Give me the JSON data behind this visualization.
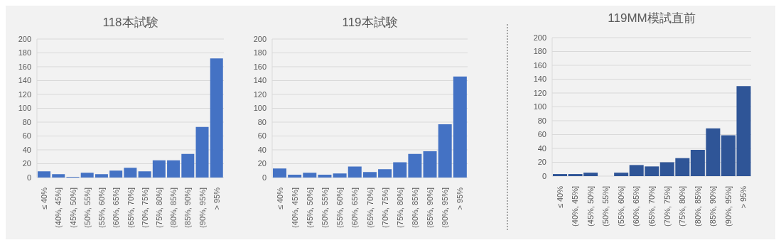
{
  "chart_data": [
    {
      "type": "bar",
      "title": "118本試験",
      "categories": [
        "≤ 40%",
        "(40%, 45%]",
        "(45%, 50%]",
        "(50%, 55%]",
        "(55%, 60%]",
        "(60%, 65%]",
        "(65%, 70%]",
        "(70%, 75%]",
        "(75%, 80%]",
        "(80%, 85%]",
        "(85%, 90%]",
        "(90%, 95%]",
        "> 95%"
      ],
      "values": [
        9,
        5,
        1,
        7,
        5,
        10,
        14,
        9,
        25,
        25,
        34,
        73,
        172
      ],
      "color": "#4472c4",
      "ylim": [
        0,
        200
      ],
      "yticks": [
        0,
        20,
        40,
        60,
        80,
        100,
        120,
        140,
        160,
        180,
        200
      ],
      "grid": "y"
    },
    {
      "type": "bar",
      "title": "119本試験",
      "categories": [
        "≤ 40%",
        "(40%, 45%]",
        "(45%, 50%]",
        "(50%, 55%]",
        "(55%, 60%]",
        "(60%, 65%]",
        "(65%, 70%]",
        "(70%, 75%]",
        "(75%, 80%]",
        "(80%, 85%]",
        "(85%, 90%]",
        "(90%, 95%]",
        "> 95%"
      ],
      "values": [
        13,
        4,
        7,
        4,
        6,
        16,
        8,
        12,
        22,
        34,
        38,
        77,
        146
      ],
      "color": "#4472c4",
      "ylim": [
        0,
        200
      ],
      "yticks": [
        0,
        20,
        40,
        60,
        80,
        100,
        120,
        140,
        160,
        180,
        200
      ],
      "grid": "y"
    },
    {
      "type": "bar",
      "title": "119MM模試直前",
      "categories": [
        "≤ 40%",
        "(40%, 45%]",
        "(45%, 50%]",
        "(50%, 55%]",
        "(55%, 60%]",
        "(60%, 65%]",
        "(65%, 70%]",
        "(70%, 75%]",
        "(75%, 80%]",
        "(80%, 85%]",
        "(85%, 90%]",
        "(90%, 95%]",
        "> 95%"
      ],
      "values": [
        3,
        3,
        5,
        0,
        5,
        16,
        14,
        20,
        26,
        38,
        69,
        59,
        130
      ],
      "color": "#2f5597",
      "ylim": [
        0,
        200
      ],
      "yticks": [
        0,
        20,
        40,
        60,
        80,
        100,
        120,
        140,
        160,
        180,
        200
      ],
      "grid": "y"
    }
  ]
}
